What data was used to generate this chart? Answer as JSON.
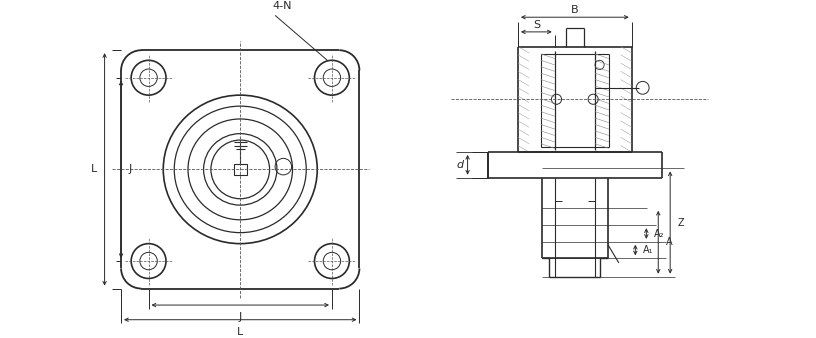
{
  "bg_color": "#ffffff",
  "line_color": "#2a2a2a",
  "dim_color": "#2a2a2a",
  "dashed_color": "#555555",
  "figsize": [
    8.16,
    3.38
  ],
  "dpi": 100,
  "font_size": 8,
  "labels": {
    "four_N": "4-N",
    "J": "J",
    "L": "L",
    "B": "B",
    "S": "S",
    "d": "d",
    "A1": "A₁",
    "A2": "A₂",
    "A": "A",
    "Z": "Z"
  }
}
